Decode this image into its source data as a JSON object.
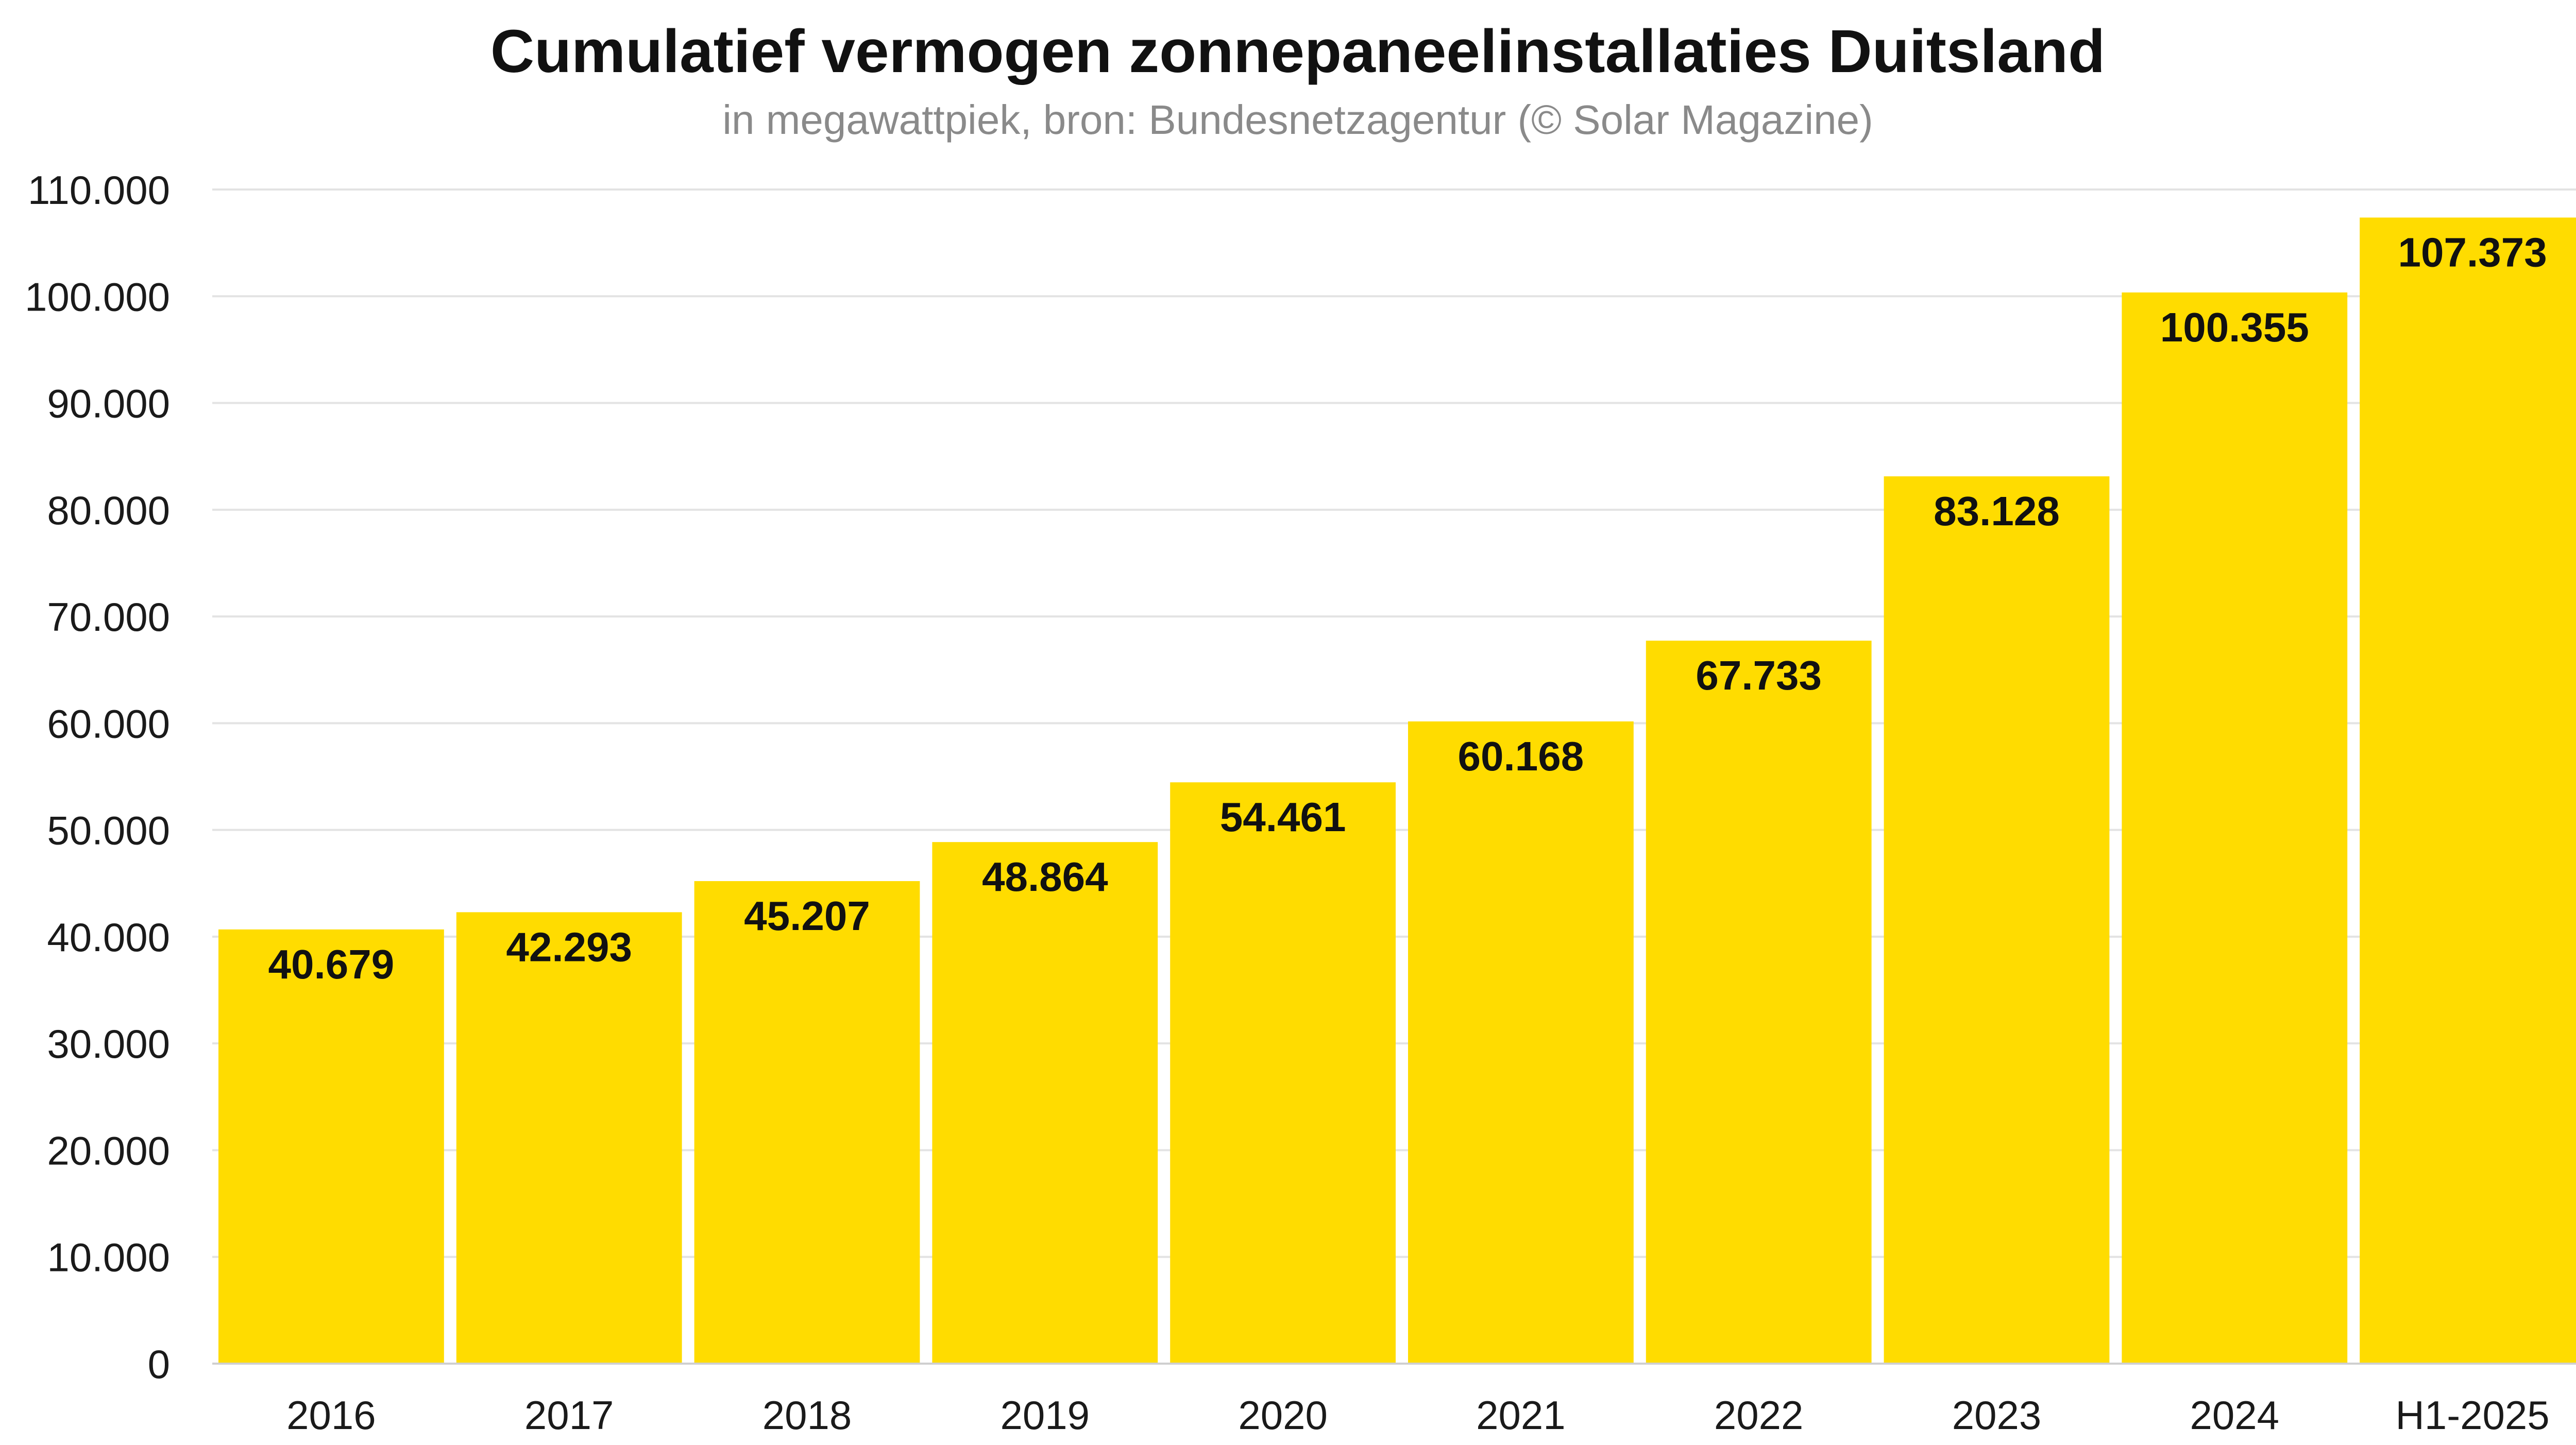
{
  "chart_data": {
    "type": "bar",
    "title": "Cumulatief vermogen zonnepaneelinstallaties Duitsland",
    "subtitle": "in megawattpiek, bron: Bundesnetzagentur (© Solar Magazine)",
    "xlabel": "",
    "ylabel": "",
    "categories": [
      "2016",
      "2017",
      "2018",
      "2019",
      "2020",
      "2021",
      "2022",
      "2023",
      "2024",
      "H1-2025"
    ],
    "values": [
      40679,
      42293,
      45207,
      48864,
      54461,
      60168,
      67733,
      83128,
      100355,
      107373
    ],
    "value_labels": [
      "40.679",
      "42.293",
      "45.207",
      "48.864",
      "54.461",
      "60.168",
      "67.733",
      "83.128",
      "100.355",
      "107.373"
    ],
    "ylim": [
      0,
      110000
    ],
    "yticks": [
      0,
      10000,
      20000,
      30000,
      40000,
      50000,
      60000,
      70000,
      80000,
      90000,
      100000,
      110000
    ],
    "ytick_labels": [
      "0",
      "10.000",
      "20.000",
      "30.000",
      "40.000",
      "50.000",
      "60.000",
      "70.000",
      "80.000",
      "90.000",
      "100.000",
      "110.000"
    ],
    "grid": true,
    "legend": "none",
    "bar_color": "#FFDC00",
    "grid_color": "#E3E3E3"
  }
}
